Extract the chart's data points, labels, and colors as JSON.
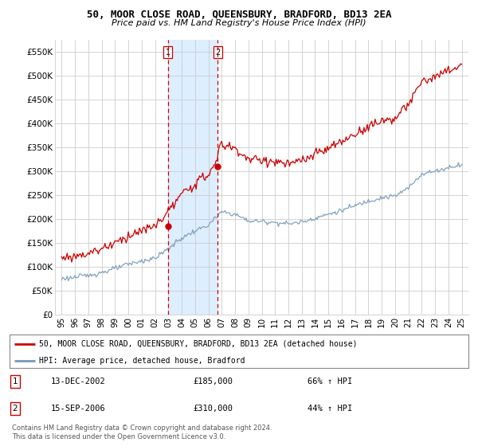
{
  "title": "50, MOOR CLOSE ROAD, QUEENSBURY, BRADFORD, BD13 2EA",
  "subtitle": "Price paid vs. HM Land Registry's House Price Index (HPI)",
  "red_label": "50, MOOR CLOSE ROAD, QUEENSBURY, BRADFORD, BD13 2EA (detached house)",
  "blue_label": "HPI: Average price, detached house, Bradford",
  "transaction1_date": "13-DEC-2002",
  "transaction1_price": "£185,000",
  "transaction1_hpi": "66% ↑ HPI",
  "transaction2_date": "15-SEP-2006",
  "transaction2_price": "£310,000",
  "transaction2_hpi": "44% ↑ HPI",
  "footer": "Contains HM Land Registry data © Crown copyright and database right 2024.\nThis data is licensed under the Open Government Licence v3.0.",
  "ylim": [
    0,
    575000
  ],
  "yticks": [
    0,
    50000,
    100000,
    150000,
    200000,
    250000,
    300000,
    350000,
    400000,
    450000,
    500000,
    550000
  ],
  "ytick_labels": [
    "£0",
    "£50K",
    "£100K",
    "£150K",
    "£200K",
    "£250K",
    "£300K",
    "£350K",
    "£400K",
    "£450K",
    "£500K",
    "£550K"
  ],
  "xtick_years": [
    1995,
    1996,
    1997,
    1998,
    1999,
    2000,
    2001,
    2002,
    2003,
    2004,
    2005,
    2006,
    2007,
    2008,
    2009,
    2010,
    2011,
    2012,
    2013,
    2014,
    2015,
    2016,
    2017,
    2018,
    2019,
    2020,
    2021,
    2022,
    2023,
    2024,
    2025
  ],
  "vline1_x": 2002.96,
  "vline2_x": 2006.71,
  "point1_x": 2002.96,
  "point1_y": 185000,
  "point2_x": 2006.71,
  "point2_y": 310000,
  "bg_shade_x1": 2002.96,
  "bg_shade_x2": 2006.71,
  "red_color": "#cc0000",
  "blue_color": "#7799bb",
  "vline_color": "#cc0000",
  "shade_color": "#ddeeff",
  "grid_color": "#cccccc",
  "background_color": "#ffffff"
}
